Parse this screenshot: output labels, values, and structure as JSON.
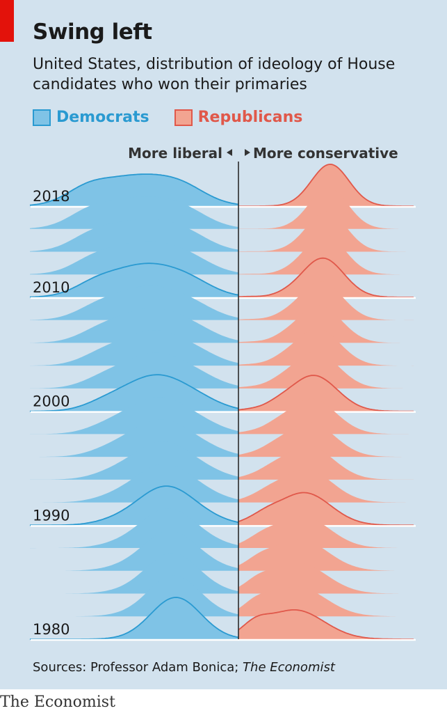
{
  "header": {
    "title": "Swing left",
    "subtitle": "United States, distribution of ideology of House candidates who won their primaries"
  },
  "legend": {
    "democrats": {
      "label": "Democrats",
      "fill": "#7fc3e6",
      "stroke": "#2a9ad1",
      "text_color": "#2a9ad1"
    },
    "republicans": {
      "label": "Republicans",
      "fill": "#f2a491",
      "stroke": "#e0584a",
      "text_color": "#e0584a"
    }
  },
  "source": {
    "prefix": "Sources: Professor Adam Bonica; ",
    "publication": "The Economist"
  },
  "brand": "The Economist",
  "chart_data": {
    "type": "ridgeline",
    "axis_labels": {
      "left": "More liberal",
      "right": "More conservative"
    },
    "highlighted_years": [
      1980,
      1990,
      2000,
      2010,
      2018
    ],
    "year_range": [
      1980,
      2018
    ],
    "election_years": [
      1980,
      1982,
      1984,
      1986,
      1988,
      1990,
      1992,
      1994,
      1996,
      1998,
      2000,
      2002,
      2004,
      2006,
      2008,
      2010,
      2012,
      2014,
      2016,
      2018
    ],
    "series": [
      {
        "name": "Democrats",
        "peak_position": [
          -0.3,
          -0.48
        ],
        "peak_height": [
          1.0,
          0.72
        ]
      },
      {
        "name": "Republicans",
        "peak_position": [
          0.27,
          0.44
        ],
        "peak_height": [
          0.7,
          1.0
        ]
      }
    ]
  }
}
